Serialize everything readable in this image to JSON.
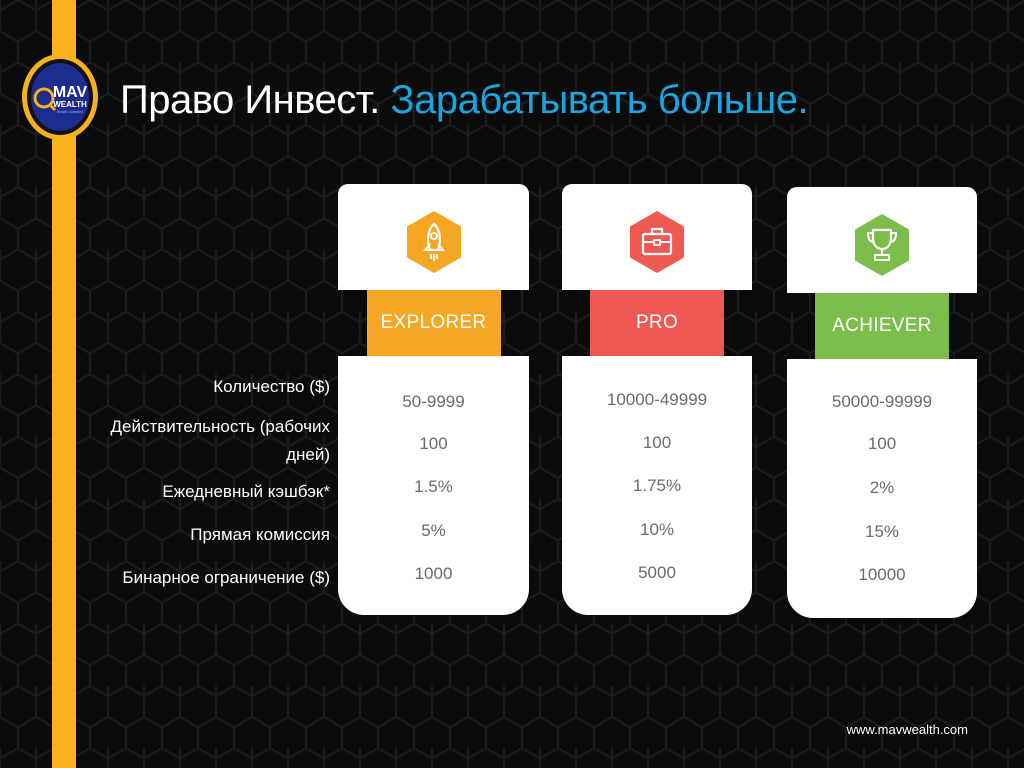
{
  "brand": {
    "logo_line1": "MAV",
    "logo_line2": "WEALTH",
    "logo_tagline": "Wealth Unlimited",
    "accent_yellow": "#f5b21c",
    "accent_blue": "#19a6e0"
  },
  "title": {
    "part1": "Право Инвест.",
    "part2": "Зарабатывать больше."
  },
  "row_labels": [
    "Количество ($)",
    "Действительность (рабочих",
    "дней)",
    "Ежедневный кэшбэк*",
    "Прямая комиссия",
    "Бинарное ограничение ($)"
  ],
  "plans": [
    {
      "name": "EXPLORER",
      "icon": "rocket-icon",
      "color": "#f5a623",
      "values": [
        "50-9999",
        "100",
        "1.5%",
        "5%",
        "1000"
      ]
    },
    {
      "name": "PRO",
      "icon": "briefcase-icon",
      "color": "#ee5a52",
      "values": [
        "10000-49999",
        "100",
        "1.75%",
        "10%",
        "5000"
      ]
    },
    {
      "name": "ACHIEVER",
      "icon": "trophy-icon",
      "color": "#7cbd4b",
      "values": [
        "50000-99999",
        "100",
        "2%",
        "15%",
        "10000"
      ]
    }
  ],
  "footer": {
    "website": "www.mavwealth.com"
  }
}
